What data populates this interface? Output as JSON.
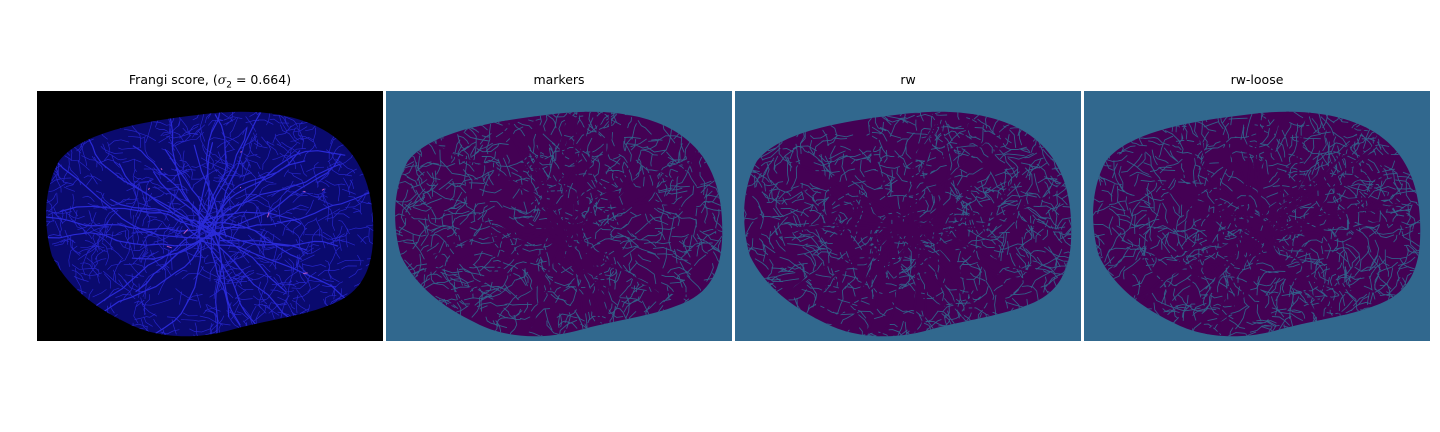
{
  "figure": {
    "panels": [
      {
        "id": "frangi",
        "title_prefix": "Frangi score, (",
        "title_symbol": "σ",
        "title_subscript": "2",
        "title_suffix": " = 0.664)",
        "colormap": "black-blue-magenta",
        "background_color": "#000000",
        "shape_color": "#0a0a6e",
        "vessel_color": "#2a2ad8",
        "highlight_color": "#d060c8"
      },
      {
        "id": "markers",
        "title": "markers",
        "colormap": "viridis",
        "background_color": "#31688e",
        "shape_color": "#440154",
        "vessel_color": "#31688e"
      },
      {
        "id": "rw",
        "title": "rw",
        "colormap": "viridis",
        "background_color": "#31688e",
        "shape_color": "#440154",
        "vessel_color": "#31688e"
      },
      {
        "id": "rw-loose",
        "title": "rw-loose",
        "colormap": "viridis",
        "background_color": "#31688e",
        "shape_color": "#440154",
        "vessel_color": "#31688e"
      }
    ]
  }
}
